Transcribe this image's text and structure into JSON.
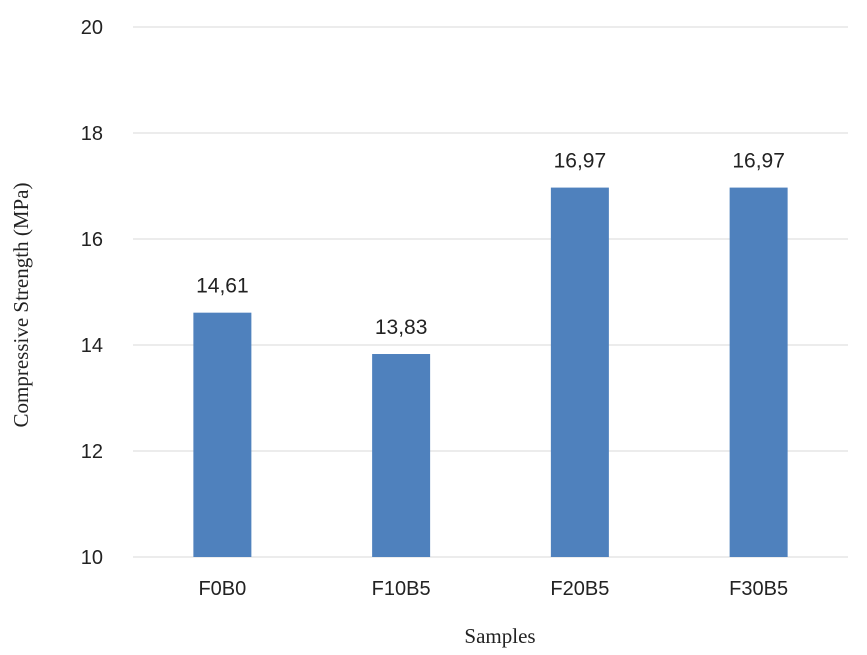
{
  "chart_data": {
    "type": "bar",
    "categories": [
      "F0B0",
      "F10B5",
      "F20B5",
      "F30B5"
    ],
    "values": [
      14.61,
      13.83,
      16.97,
      16.97
    ],
    "data_labels": [
      "14,61",
      "13,83",
      "16,97",
      "16,97"
    ],
    "xlabel": "Samples",
    "ylabel": "Compressive Strength  (MPa)",
    "ylim": [
      10,
      20
    ],
    "yticks": [
      10,
      12,
      14,
      16,
      18,
      20
    ],
    "ytick_labels": [
      "10",
      "12",
      "14",
      "16",
      "18",
      "20"
    ],
    "grid": true,
    "legend": "none",
    "colors": {
      "bar": "#4f81bd",
      "grid": "#d9d9d9"
    }
  }
}
